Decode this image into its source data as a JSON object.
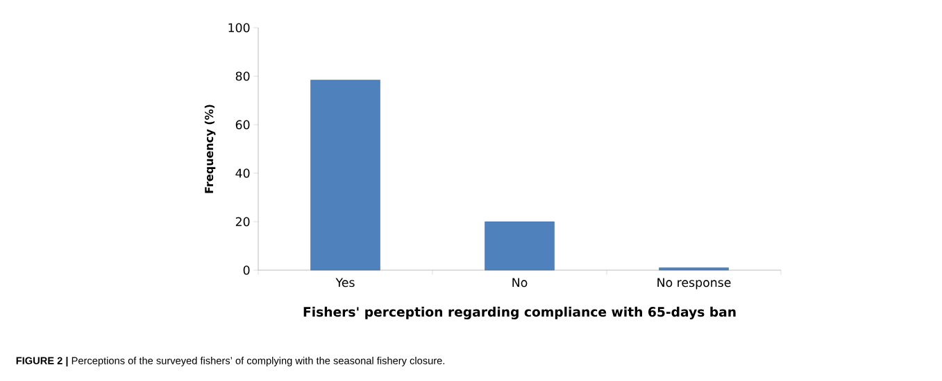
{
  "chart_data": {
    "type": "bar",
    "categories": [
      "Yes",
      "No",
      "No response"
    ],
    "values": [
      78.4,
      20,
      1
    ],
    "color": "#4f81bd",
    "xlabel": "Fishers' perception regarding compliance with 65-days ban",
    "ylabel": "Frequency (%)",
    "ylim": [
      0,
      100
    ],
    "yticks": [
      0,
      20,
      40,
      60,
      80,
      100
    ],
    "grid": false,
    "annotations": [
      "**FIGURE 2 |** Perceptions of the surveyed fishers’ of complying with the seasonal fishery closure."
    ]
  }
}
